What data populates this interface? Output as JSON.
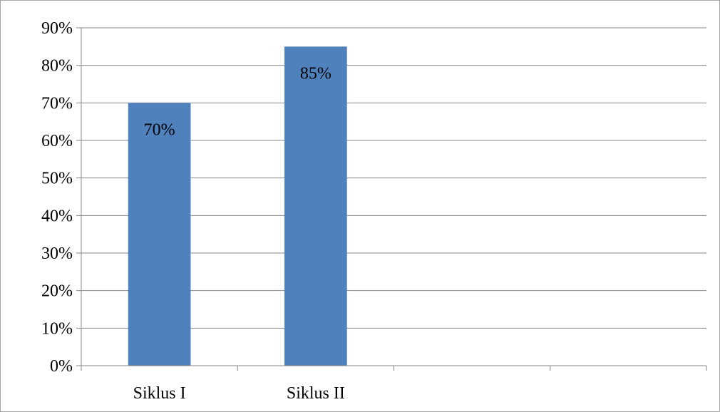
{
  "chart_data": {
    "type": "bar",
    "categories": [
      "Siklus I",
      "Siklus II",
      "",
      ""
    ],
    "values": [
      0.7,
      0.85,
      null,
      null
    ],
    "data_labels": [
      "70%",
      "85%",
      "",
      ""
    ],
    "title": "",
    "xlabel": "",
    "ylabel": "",
    "ylim": [
      0,
      0.9
    ],
    "y_ticks": [
      {
        "value": 0.0,
        "label": "0%"
      },
      {
        "value": 0.1,
        "label": "10%"
      },
      {
        "value": 0.2,
        "label": "20%"
      },
      {
        "value": 0.3,
        "label": "30%"
      },
      {
        "value": 0.4,
        "label": "40%"
      },
      {
        "value": 0.5,
        "label": "50%"
      },
      {
        "value": 0.6,
        "label": "60%"
      },
      {
        "value": 0.7,
        "label": "70%"
      },
      {
        "value": 0.8,
        "label": "80%"
      },
      {
        "value": 0.9,
        "label": "90%"
      }
    ],
    "grid": true,
    "legend": "none",
    "colors": {
      "bar": "#4f81bd",
      "grid": "#868686",
      "axis": "#868686",
      "frame": "#a6a6a6"
    }
  }
}
